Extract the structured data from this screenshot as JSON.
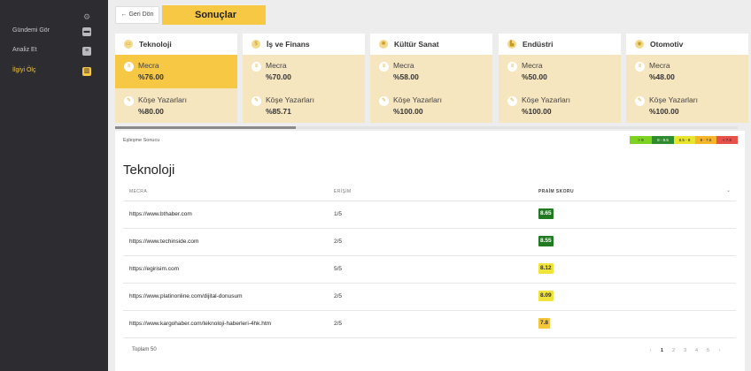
{
  "sidebar": {
    "items": [
      {
        "label": "Gündemi Gör",
        "icon": "chat-icon",
        "glyph": "▬",
        "active": false
      },
      {
        "label": "Analiz Et",
        "icon": "clipboard-icon",
        "glyph": "≡",
        "active": false
      },
      {
        "label": "İlgiyi Ölç",
        "icon": "bar-chart-icon",
        "glyph": "▥",
        "active": true
      }
    ]
  },
  "header": {
    "back_label": "← Geri Dön",
    "title": "Sonuçlar"
  },
  "cards": [
    {
      "title": "Teknoloji",
      "icon": "monitor-icon",
      "glyph": "▭",
      "selected": true,
      "metrics": [
        {
          "label": "Mecra",
          "value": "%76.00"
        },
        {
          "label": "Köşe Yazarları",
          "value": "%80.00"
        }
      ]
    },
    {
      "title": "İş ve Finans",
      "icon": "money-icon",
      "glyph": "$",
      "selected": false,
      "metrics": [
        {
          "label": "Mecra",
          "value": "%70.00"
        },
        {
          "label": "Köşe Yazarları",
          "value": "%85.71"
        }
      ]
    },
    {
      "title": "Kültür Sanat",
      "icon": "palette-icon",
      "glyph": "✱",
      "selected": false,
      "metrics": [
        {
          "label": "Mecra",
          "value": "%58.00"
        },
        {
          "label": "Köşe Yazarları",
          "value": "%100.00"
        }
      ]
    },
    {
      "title": "Endüstri",
      "icon": "factory-icon",
      "glyph": "▙",
      "selected": false,
      "metrics": [
        {
          "label": "Mecra",
          "value": "%50.00"
        },
        {
          "label": "Köşe Yazarları",
          "value": "%100.00"
        }
      ]
    },
    {
      "title": "Otomotiv",
      "icon": "car-icon",
      "glyph": "◉",
      "selected": false,
      "metrics": [
        {
          "label": "Mecra",
          "value": "%48.00"
        },
        {
          "label": "Köşe Yazarları",
          "value": "%100.00"
        }
      ]
    }
  ],
  "progress": 0.29,
  "results": {
    "match_label": "Eşleşme Sonucu",
    "legend": [
      {
        "label": "> 9",
        "color": "#7ed321"
      },
      {
        "label": "9 - 8.5",
        "color": "#2e8b2e"
      },
      {
        "label": "8.5 - 8",
        "color": "#e9e42c"
      },
      {
        "label": "8 - 7.5",
        "color": "#f5b52b"
      },
      {
        "label": "< 7.5",
        "color": "#e8504a"
      }
    ],
    "section_title": "Teknoloji",
    "columns": [
      "MECRA",
      "ERİŞİM",
      "PRAİM SKORU"
    ],
    "rows": [
      {
        "url": "https://www.bthaber.com",
        "reach": "1/5",
        "score": "8.65",
        "bg": "#1f7a22",
        "fg": "#ffffff"
      },
      {
        "url": "https://www.techinside.com",
        "reach": "2/5",
        "score": "8.55",
        "bg": "#1f7a22",
        "fg": "#ffffff"
      },
      {
        "url": "https://egirisim.com",
        "reach": "5/5",
        "score": "8.12",
        "bg": "#f0e33a",
        "fg": "#333333"
      },
      {
        "url": "https://www.platinonline.com/dijital-donusum",
        "reach": "2/5",
        "score": "8.09",
        "bg": "#f0e33a",
        "fg": "#333333"
      },
      {
        "url": "https://www.kargohaber.com/teknoloji-haberleri-4hk.htm",
        "reach": "2/5",
        "score": "7.8",
        "bg": "#f5c53a",
        "fg": "#333333"
      }
    ],
    "total": "Toplam 50",
    "pages": [
      "‹",
      "1",
      "2",
      "3",
      "4",
      "5",
      "›"
    ],
    "current_page": "1"
  }
}
